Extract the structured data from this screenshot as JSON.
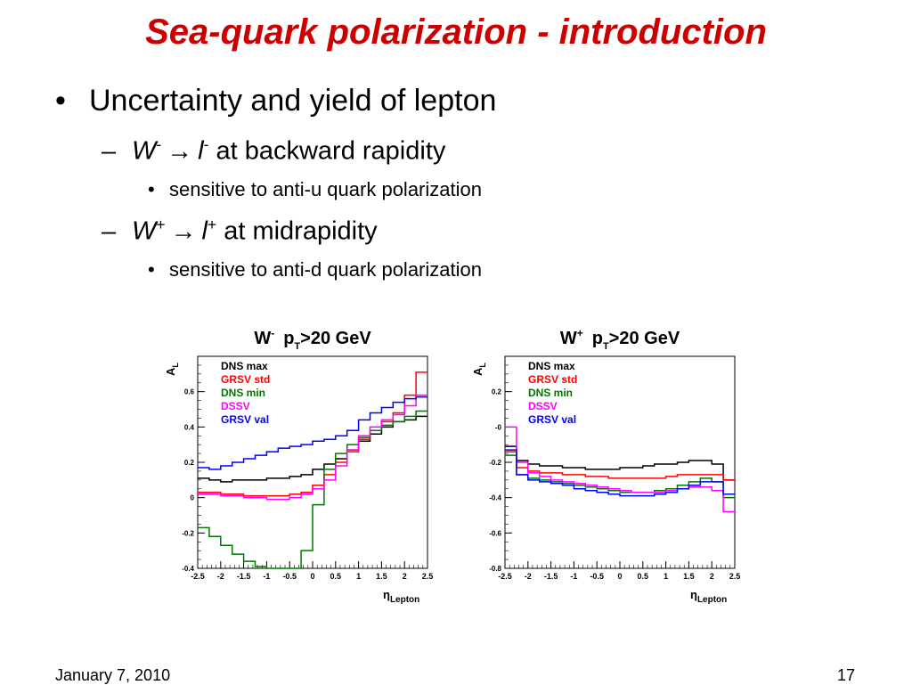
{
  "slide": {
    "title": "Sea-quark polarization - introduction",
    "bullet1": "Uncertainty and yield of lepton",
    "sub1": {
      "w": "W",
      "w_charge": "-",
      "arrow": "→",
      "l": "l",
      "l_charge": "-",
      "text": " at backward rapidity"
    },
    "sub1_detail": "sensitive to anti-u quark polarization",
    "sub2": {
      "w": "W",
      "w_charge": "+",
      "arrow": "→",
      "l": "l",
      "l_charge": "+",
      "text": " at midrapidity"
    },
    "sub2_detail": "sensitive to anti-d quark polarization",
    "footer_date": "January 7, 2010",
    "page_number": "17"
  },
  "colors": {
    "title": "#cc0000",
    "DNS max": "#000000",
    "GRSV std": "#ff0000",
    "DNS min": "#007700",
    "DSSV": "#ff00ff",
    "GRSV val": "#0000ff"
  },
  "chart_data": [
    {
      "type": "line",
      "title_boson": "W",
      "title_charge": "-",
      "title_rest": "p",
      "title_sub": "T",
      "title_tail": ">20 GeV",
      "ylabel": "A",
      "ylabel_sub": "L",
      "xlabel": "η",
      "xlabel_sub": "Lepton",
      "xlim": [
        -2.5,
        2.5
      ],
      "ylim": [
        -0.4,
        0.8
      ],
      "xticks": [
        "-2.5",
        "-2",
        "-1.5",
        "-1",
        "-0.5",
        "0",
        "0.5",
        "1",
        "1.5",
        "2",
        "2.5"
      ],
      "yticks": [
        "-0.4",
        "-0.2",
        "0",
        "0.2",
        "0.4",
        "0.6"
      ],
      "x_edges": [
        -2.5,
        -2.25,
        -2.0,
        -1.75,
        -1.5,
        -1.25,
        -1.0,
        -0.75,
        -0.5,
        -0.25,
        0.0,
        0.25,
        0.5,
        0.75,
        1.0,
        1.25,
        1.5,
        1.75,
        2.0,
        2.25,
        2.5
      ],
      "series": [
        {
          "name": "DNS max",
          "values": [
            0.11,
            0.1,
            0.09,
            0.1,
            0.1,
            0.1,
            0.11,
            0.11,
            0.12,
            0.13,
            0.16,
            0.19,
            0.22,
            0.27,
            0.32,
            0.36,
            0.4,
            0.43,
            0.44,
            0.46
          ]
        },
        {
          "name": "GRSV std",
          "values": [
            0.03,
            0.03,
            0.02,
            0.02,
            0.01,
            0.01,
            0.01,
            0.01,
            0.02,
            0.03,
            0.07,
            0.13,
            0.2,
            0.26,
            0.33,
            0.38,
            0.43,
            0.48,
            0.58,
            0.71
          ]
        },
        {
          "name": "DNS min",
          "values": [
            -0.17,
            -0.22,
            -0.27,
            -0.32,
            -0.36,
            -0.39,
            -0.41,
            -0.41,
            -0.4,
            -0.3,
            -0.04,
            0.16,
            0.25,
            0.3,
            0.34,
            0.38,
            0.41,
            0.43,
            0.46,
            0.49
          ]
        },
        {
          "name": "DSSV",
          "values": [
            0.02,
            0.02,
            0.01,
            0.01,
            0.0,
            0.0,
            -0.01,
            -0.01,
            0.0,
            0.02,
            0.05,
            0.1,
            0.18,
            0.27,
            0.35,
            0.4,
            0.44,
            0.47,
            0.52,
            0.58
          ]
        },
        {
          "name": "GRSV val",
          "values": [
            0.17,
            0.16,
            0.18,
            0.2,
            0.22,
            0.24,
            0.26,
            0.28,
            0.29,
            0.3,
            0.32,
            0.33,
            0.35,
            0.38,
            0.44,
            0.48,
            0.51,
            0.54,
            0.56,
            0.57
          ]
        }
      ]
    },
    {
      "type": "line",
      "title_boson": "W",
      "title_charge": "+",
      "title_rest": "p",
      "title_sub": "T",
      "title_tail": ">20 GeV",
      "ylabel": "A",
      "ylabel_sub": "L",
      "xlabel": "η",
      "xlabel_sub": "Lepton",
      "xlim": [
        -2.5,
        2.5
      ],
      "ylim": [
        -0.8,
        0.4
      ],
      "xticks": [
        "-2.5",
        "-2",
        "-1.5",
        "-1",
        "-0.5",
        "0",
        "0.5",
        "1",
        "1.5",
        "2",
        "2.5"
      ],
      "yticks": [
        "-0.8",
        "-0.6",
        "-0.4",
        "-0.2",
        "-0",
        "0.2"
      ],
      "x_edges": [
        -2.5,
        -2.25,
        -2.0,
        -1.75,
        -1.5,
        -1.25,
        -1.0,
        -0.75,
        -0.5,
        -0.25,
        0.0,
        0.25,
        0.5,
        0.75,
        1.0,
        1.25,
        1.5,
        1.75,
        2.0,
        2.25,
        2.5
      ],
      "series": [
        {
          "name": "DNS max",
          "values": [
            -0.11,
            -0.19,
            -0.21,
            -0.22,
            -0.22,
            -0.23,
            -0.23,
            -0.24,
            -0.24,
            -0.24,
            -0.23,
            -0.23,
            -0.22,
            -0.21,
            -0.21,
            -0.2,
            -0.19,
            -0.19,
            -0.21,
            -0.3
          ]
        },
        {
          "name": "GRSV std",
          "values": [
            -0.14,
            -0.23,
            -0.25,
            -0.26,
            -0.26,
            -0.27,
            -0.27,
            -0.28,
            -0.28,
            -0.29,
            -0.29,
            -0.29,
            -0.29,
            -0.29,
            -0.28,
            -0.27,
            -0.27,
            -0.27,
            -0.27,
            -0.3
          ]
        },
        {
          "name": "DNS min",
          "values": [
            -0.16,
            -0.27,
            -0.29,
            -0.3,
            -0.31,
            -0.32,
            -0.33,
            -0.34,
            -0.35,
            -0.36,
            -0.37,
            -0.37,
            -0.37,
            -0.36,
            -0.35,
            -0.33,
            -0.31,
            -0.29,
            -0.31,
            -0.4
          ]
        },
        {
          "name": "DSSV",
          "values": [
            0.0,
            -0.2,
            -0.26,
            -0.28,
            -0.3,
            -0.31,
            -0.32,
            -0.33,
            -0.34,
            -0.35,
            -0.36,
            -0.37,
            -0.37,
            -0.37,
            -0.36,
            -0.35,
            -0.34,
            -0.34,
            -0.36,
            -0.48
          ]
        },
        {
          "name": "GRSV val",
          "values": [
            -0.13,
            -0.27,
            -0.3,
            -0.31,
            -0.32,
            -0.33,
            -0.35,
            -0.36,
            -0.37,
            -0.38,
            -0.39,
            -0.39,
            -0.39,
            -0.38,
            -0.37,
            -0.35,
            -0.33,
            -0.31,
            -0.31,
            -0.38
          ]
        }
      ]
    }
  ]
}
